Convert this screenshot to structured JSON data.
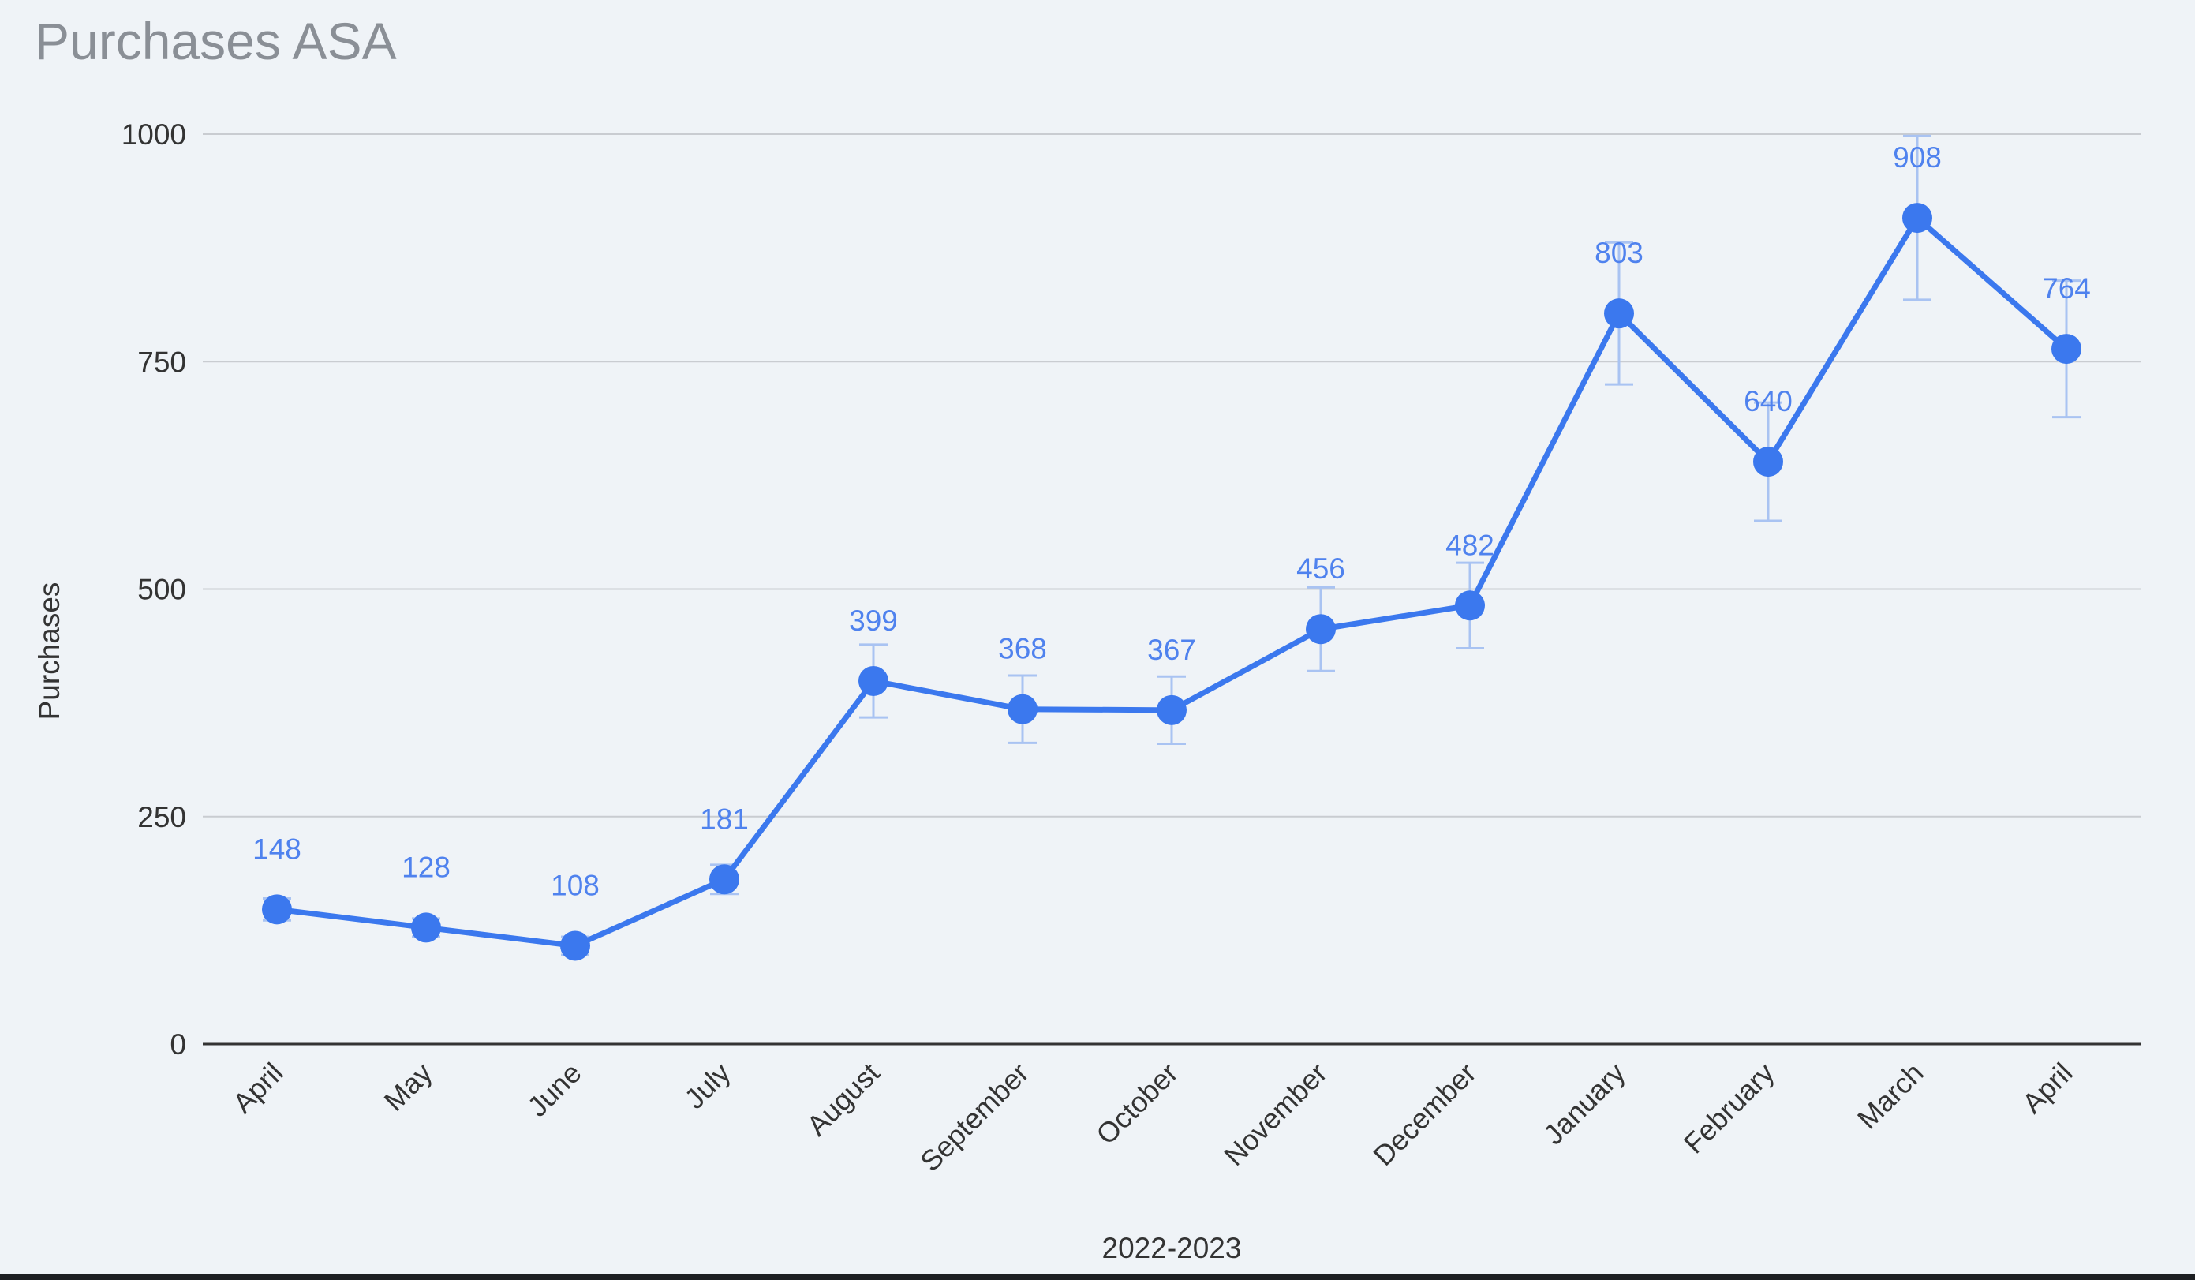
{
  "chart_data": {
    "type": "line",
    "title": "Purchases ASA",
    "xlabel": "2022-2023",
    "ylabel": "Purchases",
    "ylim": [
      0,
      1000
    ],
    "yticks": [
      0,
      250,
      500,
      750,
      1000
    ],
    "grid": true,
    "categories": [
      "April",
      "May",
      "June",
      "July",
      "August",
      "September",
      "October",
      "November",
      "December",
      "January",
      "February",
      "March",
      "April"
    ],
    "series": [
      {
        "name": "Purchases",
        "values": [
          148,
          128,
          108,
          181,
          399,
          368,
          367,
          456,
          482,
          803,
          640,
          908,
          764
        ],
        "error": [
          12,
          10,
          10,
          16,
          40,
          37,
          37,
          46,
          47,
          78,
          65,
          90,
          75
        ],
        "data_labels": [
          "148",
          "128",
          "108",
          "181",
          "399",
          "368",
          "367",
          "456",
          "482",
          "803",
          "640",
          "908",
          "764"
        ]
      }
    ],
    "colors": {
      "line": "#3b78ee",
      "error": "#a9c3f2",
      "label": "#4f82ee",
      "grid": "#c9ccd1",
      "axis": "#333333"
    }
  }
}
